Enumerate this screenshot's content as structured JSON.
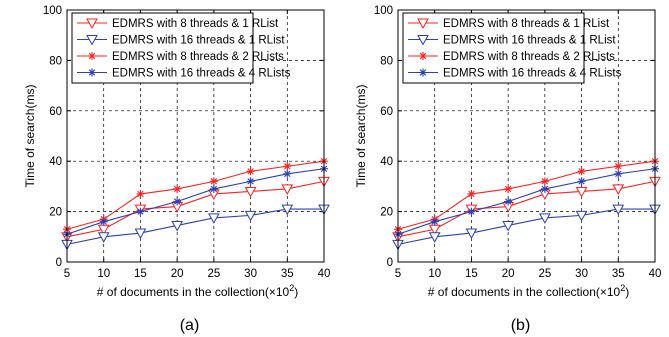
{
  "chart_data": [
    {
      "type": "line",
      "panel_label": "(a)",
      "xlabel": "# of documents in the collection(×10",
      "xlabel_sup": "2",
      "xlabel_end": ")",
      "ylabel": "Time of search(ms)",
      "x": [
        5,
        10,
        15,
        20,
        25,
        30,
        35,
        40
      ],
      "xlim": [
        5,
        40
      ],
      "ylim": [
        0,
        100
      ],
      "xticks": [
        5,
        10,
        15,
        20,
        25,
        30,
        35,
        40
      ],
      "yticks": [
        0,
        20,
        40,
        60,
        80,
        100
      ],
      "grid": true,
      "legend_position": "top-left",
      "series": [
        {
          "name": "EDMRS with 8 threads & 1 RList",
          "color": "#ff2020",
          "marker": "triangle-down",
          "values": [
            10,
            13,
            21,
            22,
            27,
            28,
            29,
            32
          ]
        },
        {
          "name": "EDMRS with 16 threads & 1 RList",
          "color": "#2a40b4",
          "marker": "triangle-down",
          "values": [
            7,
            10,
            11.5,
            14.5,
            17.5,
            18.5,
            21,
            21
          ]
        },
        {
          "name": "EDMRS with 8 threads & 2 RLists",
          "color": "#ff2020",
          "marker": "star",
          "values": [
            13,
            17,
            27,
            29,
            32,
            36,
            38,
            40
          ]
        },
        {
          "name": "EDMRS with 16 threads & 4 RLists",
          "color": "#2a40b4",
          "marker": "star",
          "values": [
            11,
            16,
            20,
            24,
            29,
            32,
            35,
            37
          ]
        }
      ]
    },
    {
      "type": "line",
      "panel_label": "(b)",
      "xlabel": "# of documents in the collection(×10",
      "xlabel_sup": "2",
      "xlabel_end": ")",
      "ylabel": "Time of search(ms)",
      "x": [
        5,
        10,
        15,
        20,
        25,
        30,
        35,
        40
      ],
      "xlim": [
        5,
        40
      ],
      "ylim": [
        0,
        100
      ],
      "xticks": [
        5,
        10,
        15,
        20,
        25,
        30,
        35,
        40
      ],
      "yticks": [
        0,
        20,
        40,
        60,
        80,
        100
      ],
      "grid": true,
      "legend_position": "top-left",
      "series": [
        {
          "name": "EDMRS with 8 threads & 1 RList",
          "color": "#ff2020",
          "marker": "triangle-down",
          "values": [
            10,
            13,
            21,
            22,
            27,
            28,
            29,
            32
          ]
        },
        {
          "name": "EDMRS with 16 threads & 1 RList",
          "color": "#2a40b4",
          "marker": "triangle-down",
          "values": [
            7,
            10,
            11.5,
            14.5,
            17.5,
            18.5,
            21,
            21
          ]
        },
        {
          "name": "EDMRS with 8 threads & 2 RLists",
          "color": "#ff2020",
          "marker": "star",
          "values": [
            13,
            17,
            27,
            29,
            32,
            36,
            38,
            40
          ]
        },
        {
          "name": "EDMRS with 16 threads & 4 RLists",
          "color": "#2a40b4",
          "marker": "star",
          "values": [
            11,
            16,
            20,
            24,
            29,
            32,
            35,
            37
          ]
        }
      ]
    }
  ]
}
